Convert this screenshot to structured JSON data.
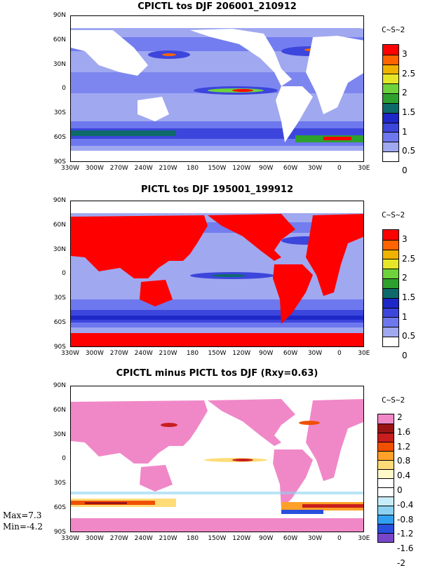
{
  "xticks": [
    "330W",
    "300W",
    "270W",
    "240W",
    "210W",
    "180",
    "150W",
    "120W",
    "90W",
    "60W",
    "30W",
    "0",
    "30E"
  ],
  "yticks": [
    "90N",
    "60N",
    "30N",
    "0",
    "30S",
    "60S",
    "90S"
  ],
  "panels": [
    {
      "title": "CPICTL tos DJF 206001_210912",
      "units": "C~S~2",
      "land_color": "#ffffff",
      "colorbar_colors": [
        "#ffffff",
        "#a0a8f0",
        "#6e78ee",
        "#3c46dc",
        "#1e28c8",
        "#0e6a6a",
        "#2ea02e",
        "#6ed23c",
        "#e6e628",
        "#f0b400",
        "#ff6400",
        "#ff0000"
      ],
      "colorbar_labels": [
        "3",
        "2.5",
        "2",
        "1.5",
        "1",
        "0.5",
        "0"
      ]
    },
    {
      "title": "PICTL tos DJF 195001_199912",
      "units": "C~S~2",
      "land_color": "#ff0000",
      "colorbar_colors": [
        "#ffffff",
        "#a0a8f0",
        "#6e78ee",
        "#3c46dc",
        "#1e28c8",
        "#0e6a6a",
        "#2ea02e",
        "#6ed23c",
        "#e6e628",
        "#f0b400",
        "#ff6400",
        "#ff0000"
      ],
      "colorbar_labels": [
        "3",
        "2.5",
        "2",
        "1.5",
        "1",
        "0.5",
        "0"
      ]
    },
    {
      "title": "CPICTL minus PICTL tos DJF (Rxy=0.63)",
      "units": "C~S~2",
      "land_color": "#f088c8",
      "colorbar_colors": [
        "#7846c8",
        "#2850dc",
        "#32a0f0",
        "#8cd2f0",
        "#c8ecf8",
        "#ffffff",
        "#ffffff",
        "#fff8c8",
        "#ffdc78",
        "#ffa028",
        "#f05000",
        "#c81e1e",
        "#9b1414",
        "#f088c8"
      ],
      "colorbar_labels": [
        "2",
        "1.6",
        "1.2",
        "0.8",
        "0.4",
        "0",
        "-0.4",
        "-0.8",
        "-1.2",
        "-1.6",
        "-2"
      ],
      "max_label": "Max=7.3",
      "min_label": "Min=-4.2"
    }
  ]
}
